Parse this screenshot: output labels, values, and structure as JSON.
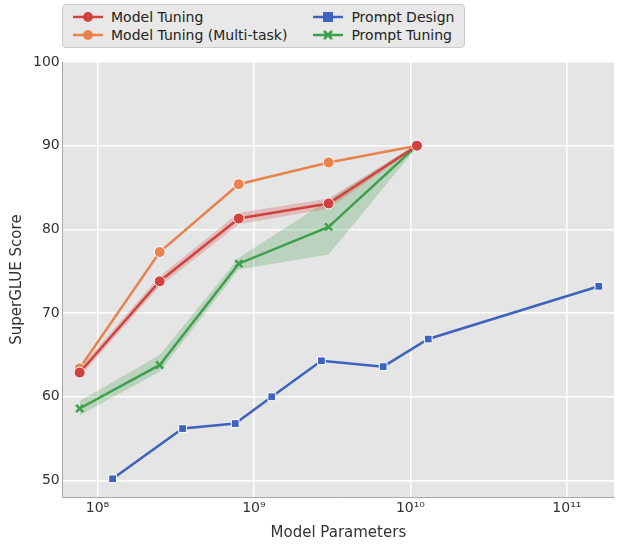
{
  "chart_data": {
    "type": "line",
    "x_label": "Model Parameters",
    "y_label": "SuperGLUE Score",
    "log": "x",
    "grid": true,
    "legend": "top-left",
    "xlim": [
      60000000,
      200000000000
    ],
    "xticks": [
      {
        "value": 100000000,
        "label": "10⁸"
      },
      {
        "value": 1000000000,
        "label": "10⁹"
      },
      {
        "value": 10000000000,
        "label": "10¹⁰"
      },
      {
        "value": 100000000000,
        "label": "10¹¹"
      }
    ],
    "ylim": [
      48,
      100
    ],
    "yticks": [
      50,
      60,
      70,
      80,
      90,
      100
    ],
    "series": [
      {
        "name": "Model Tuning",
        "color": "#d1423f",
        "marker": "circle",
        "line_style": "solid",
        "x": [
          77000000,
          250000000,
          800000000,
          3000000000,
          11000000000
        ],
        "values": [
          62.9,
          73.8,
          81.3,
          83.1,
          90.0
        ],
        "band_lower": [
          62.4,
          73.2,
          80.6,
          82.5,
          89.8
        ],
        "band_upper": [
          63.4,
          74.4,
          82.0,
          83.7,
          90.2
        ]
      },
      {
        "name": "Model Tuning (Multi-task)",
        "color": "#e8834e",
        "marker": "circle",
        "line_style": "solid",
        "x": [
          77000000,
          250000000,
          800000000,
          3000000000,
          11000000000
        ],
        "values": [
          63.4,
          77.3,
          85.4,
          88.0,
          90.0
        ]
      },
      {
        "name": "Prompt Design",
        "color": "#3d62c0",
        "marker": "square",
        "line_style": "solid",
        "x": [
          125000000,
          350000000,
          760000000,
          1300000000,
          2700000000,
          6700000000,
          13000000000,
          160000000000
        ],
        "values": [
          50.2,
          56.2,
          56.8,
          60.0,
          64.3,
          63.6,
          66.9,
          73.2
        ]
      },
      {
        "name": "Prompt Tuning",
        "color": "#3ea04c",
        "marker": "x",
        "line_style": "solid",
        "x": [
          77000000,
          250000000,
          800000000,
          3000000000,
          11000000000
        ],
        "values": [
          58.6,
          63.8,
          75.9,
          80.3,
          90.0
        ],
        "band_lower": [
          57.8,
          63.0,
          75.2,
          77.0,
          89.8
        ],
        "band_upper": [
          59.5,
          65.0,
          76.6,
          83.5,
          90.2
        ]
      }
    ]
  }
}
